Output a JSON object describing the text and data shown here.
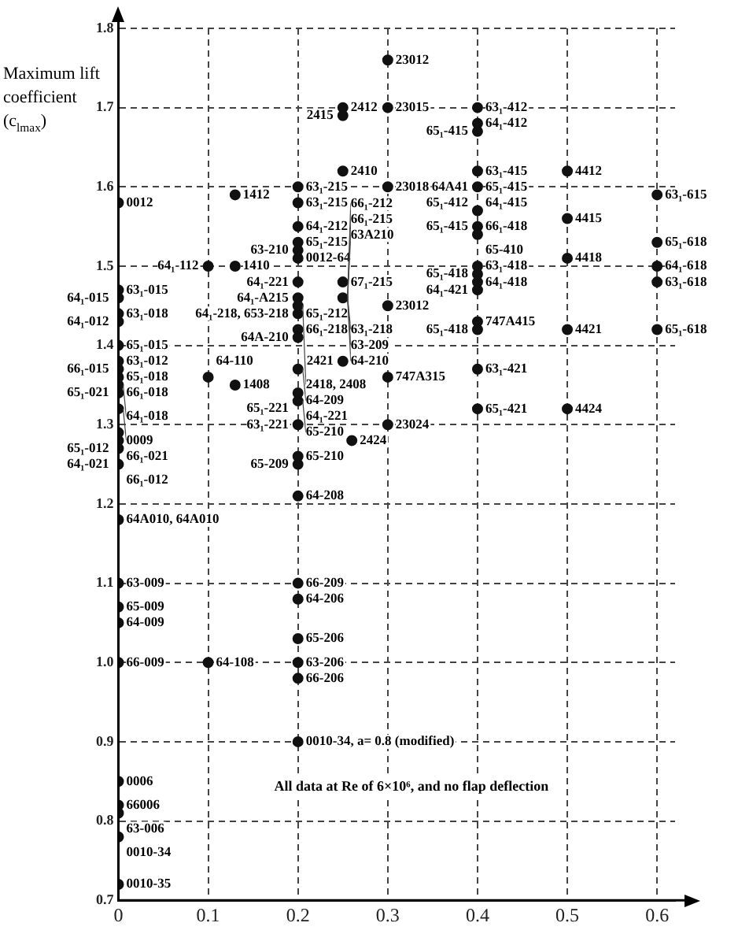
{
  "chart_data": {
    "type": "scatter",
    "ylabel": "Maximum lift coefficient (c$_{lmax}$)",
    "color": "#111111",
    "marker": "circle",
    "grid": true,
    "xlim": [
      0,
      0.62
    ],
    "ylim": [
      0.7,
      1.8
    ],
    "xticks": [
      0,
      0.1,
      0.2,
      0.3,
      0.4,
      0.5,
      0.6
    ],
    "yticks": [
      0.7,
      0.8,
      0.9,
      {
        "value": 1,
        "label": "1.0"
      },
      1.1,
      1.2,
      1.3,
      1.4,
      1.5,
      1.6,
      1.7,
      1.8
    ],
    "x": [
      0,
      0,
      0,
      0,
      0,
      0,
      0,
      0,
      0,
      0,
      0,
      0,
      0,
      0,
      0,
      0,
      0,
      0,
      0,
      0,
      0,
      0,
      0,
      0,
      0,
      0,
      0.13,
      0.13,
      0.1,
      0.1,
      0.13,
      0.1,
      0.2,
      0.2,
      0.2,
      0.2,
      0.2,
      0.2,
      0.2,
      0.2,
      0.2,
      0.2,
      0.2,
      0.2,
      0.2,
      0.2,
      0.2,
      0.2,
      0.2,
      0.2,
      0.2,
      0.2,
      0.2,
      0.2,
      0.2,
      0.2,
      0.2,
      0.25,
      0.25,
      0.25,
      0.25,
      0.25,
      0.25,
      0.26,
      0.3,
      0.3,
      0.3,
      0.3,
      0.3,
      0.3,
      0.4,
      0.4,
      0.4,
      0.4,
      0.4,
      0.4,
      0.4,
      0.4,
      0.4,
      0.4,
      0.4,
      0.4,
      0.4,
      0.4,
      0.4,
      0.4,
      0.5,
      0.5,
      0.5,
      0.5,
      0.5,
      0.6,
      0.6,
      0.6,
      0.6,
      0.6
    ],
    "values": [
      1.58,
      1.47,
      1.46,
      1.44,
      1.43,
      1.4,
      1.38,
      1.37,
      1.36,
      1.35,
      1.32,
      1.29,
      1.28,
      1.27,
      1.25,
      1.18,
      1.1,
      1.07,
      1.05,
      1.0,
      0.85,
      0.82,
      0.81,
      0.78,
      0.72,
      1.34,
      1.59,
      1.5,
      1.5,
      1.36,
      1.35,
      1.0,
      1.6,
      1.58,
      1.55,
      1.53,
      1.52,
      1.51,
      1.48,
      1.46,
      1.44,
      1.42,
      1.37,
      1.34,
      1.33,
      1.3,
      1.26,
      1.25,
      1.21,
      1.1,
      1.08,
      1.03,
      1.0,
      0.98,
      0.9,
      1.45,
      1.41,
      1.7,
      1.69,
      1.62,
      1.48,
      1.46,
      1.38,
      1.28,
      1.76,
      1.7,
      1.6,
      1.45,
      1.36,
      1.3,
      1.7,
      1.68,
      1.67,
      1.62,
      1.6,
      1.57,
      1.55,
      1.54,
      1.5,
      1.49,
      1.48,
      1.47,
      1.43,
      1.42,
      1.37,
      1.32,
      1.62,
      1.56,
      1.51,
      1.42,
      1.32,
      1.59,
      1.53,
      1.5,
      1.48,
      1.42
    ],
    "annotations": [
      {
        "text": "0012",
        "x": 0,
        "y": 1.58
      },
      {
        "text": "63₁-015",
        "x": 0,
        "y": 1.47
      },
      {
        "text": "64₁-015",
        "x": 0,
        "y": 1.46
      },
      {
        "text": "63₁-018",
        "x": 0,
        "y": 1.44
      },
      {
        "text": "64₁-012",
        "x": 0,
        "y": 1.43
      },
      {
        "text": "65₁-015",
        "x": 0,
        "y": 1.4
      },
      {
        "text": "63₁-012",
        "x": 0,
        "y": 1.38
      },
      {
        "text": "66₁-015",
        "x": 0,
        "y": 1.37
      },
      {
        "text": "65₁-018",
        "x": 0,
        "y": 1.36
      },
      {
        "text": "66₁-018",
        "x": 0,
        "y": 1.36
      },
      {
        "text": "65₁-021",
        "x": 0,
        "y": 1.36
      },
      {
        "text": "64₁-018",
        "x": 0,
        "y": 1.35
      },
      {
        "text": "0009",
        "x": 0,
        "y": 1.32
      },
      {
        "text": "65₁-012",
        "x": 0,
        "y": 1.29
      },
      {
        "text": "66₁-021",
        "x": 0,
        "y": 1.28
      },
      {
        "text": "64₁-021",
        "x": 0,
        "y": 1.27
      },
      {
        "text": "66₁-012",
        "x": 0,
        "y": 1.25
      },
      {
        "text": "64A010, 64A010",
        "x": 0,
        "y": 1.18
      },
      {
        "text": "63-009",
        "x": 0,
        "y": 1.1
      },
      {
        "text": "65-009",
        "x": 0,
        "y": 1.07
      },
      {
        "text": "64-009",
        "x": 0,
        "y": 1.05
      },
      {
        "text": "66-009",
        "x": 0,
        "y": 1.0
      },
      {
        "text": "0006",
        "x": 0,
        "y": 0.85
      },
      {
        "text": "66006",
        "x": 0,
        "y": 0.82
      },
      {
        "text": "63-006",
        "x": 0,
        "y": 0.81
      },
      {
        "text": "0010-34",
        "x": 0,
        "y": 0.78
      },
      {
        "text": "0010-35",
        "x": 0,
        "y": 0.72
      },
      {
        "text": "1412",
        "x": 0.13,
        "y": 1.59
      },
      {
        "text": "1410",
        "x": 0.13,
        "y": 1.5
      },
      {
        "text": "64₁-112",
        "x": 0.1,
        "y": 1.5
      },
      {
        "text": "64-110",
        "x": 0.1,
        "y": 1.36
      },
      {
        "text": "1408",
        "x": 0.13,
        "y": 1.35
      },
      {
        "text": "64-108",
        "x": 0.1,
        "y": 1.0
      },
      {
        "text": "63₁-215",
        "x": 0.2,
        "y": 1.6
      },
      {
        "text": "63₁-215",
        "x": 0.2,
        "y": 1.58
      },
      {
        "text": "64₁-212",
        "x": 0.2,
        "y": 1.55
      },
      {
        "text": "65₁-215",
        "x": 0.2,
        "y": 1.53
      },
      {
        "text": "63-210",
        "x": 0.2,
        "y": 1.52
      },
      {
        "text": "0012-64",
        "x": 0.2,
        "y": 1.51
      },
      {
        "text": "64₁-221",
        "x": 0.2,
        "y": 1.48
      },
      {
        "text": "64₁-A215",
        "x": 0.2,
        "y": 1.48
      },
      {
        "text": "64₁-218, 653-218",
        "x": 0.2,
        "y": 1.46
      },
      {
        "text": "65₁-212",
        "x": 0.2,
        "y": 1.44
      },
      {
        "text": "66₁-218",
        "x": 0.2,
        "y": 1.42
      },
      {
        "text": "64A-210",
        "x": 0.2,
        "y": 1.41
      },
      {
        "text": "2418, 2408",
        "x": 0.2,
        "y": 1.45
      },
      {
        "text": "64-209",
        "x": 0.2,
        "y": 1.37
      },
      {
        "text": "65₁-221",
        "x": 0.2,
        "y": 1.34
      },
      {
        "text": "64₁-221",
        "x": 0.2,
        "y": 1.33
      },
      {
        "text": "65-210",
        "x": 0.2,
        "y": 1.33
      },
      {
        "text": "63₁-221",
        "x": 0.2,
        "y": 1.3
      },
      {
        "text": "65-210",
        "x": 0.2,
        "y": 1.26
      },
      {
        "text": "65-209",
        "x": 0.2,
        "y": 1.25
      },
      {
        "text": "64-208",
        "x": 0.2,
        "y": 1.21
      },
      {
        "text": "66-209",
        "x": 0.2,
        "y": 1.1
      },
      {
        "text": "64-206",
        "x": 0.2,
        "y": 1.08
      },
      {
        "text": "65-206",
        "x": 0.2,
        "y": 1.03
      },
      {
        "text": "63-206",
        "x": 0.2,
        "y": 1.0
      },
      {
        "text": "66-206",
        "x": 0.2,
        "y": 0.98
      },
      {
        "text": "0010-34, a= 0.8 (modified)",
        "x": 0.2,
        "y": 0.9
      },
      {
        "text": "2412",
        "x": 0.25,
        "y": 1.7
      },
      {
        "text": "2415",
        "x": 0.25,
        "y": 1.69
      },
      {
        "text": "2410",
        "x": 0.25,
        "y": 1.62
      },
      {
        "text": "67₁-215",
        "x": 0.25,
        "y": 1.48
      },
      {
        "text": "63₁-218",
        "x": 0.25,
        "y": 1.46
      },
      {
        "text": "63-209",
        "x": 0.25,
        "y": 1.46
      },
      {
        "text": "64-210",
        "x": 0.25,
        "y": 1.46
      },
      {
        "text": "63A210",
        "x": 0.25,
        "y": 1.46
      },
      {
        "text": "66₁-215",
        "x": 0.25,
        "y": 1.46
      },
      {
        "text": "66₁-212",
        "x": 0.25,
        "y": 1.46
      },
      {
        "text": "2421",
        "x": 0.25,
        "y": 1.38
      },
      {
        "text": "2424",
        "x": 0.26,
        "y": 1.28
      },
      {
        "text": "23012",
        "x": 0.3,
        "y": 1.76
      },
      {
        "text": "23015",
        "x": 0.3,
        "y": 1.7
      },
      {
        "text": "23018",
        "x": 0.3,
        "y": 1.6
      },
      {
        "text": "23012",
        "x": 0.3,
        "y": 1.45
      },
      {
        "text": "747A315",
        "x": 0.3,
        "y": 1.36
      },
      {
        "text": "23024",
        "x": 0.3,
        "y": 1.3
      },
      {
        "text": "63₁-412",
        "x": 0.4,
        "y": 1.7
      },
      {
        "text": "64₁-412",
        "x": 0.4,
        "y": 1.68
      },
      {
        "text": "65₁-415",
        "x": 0.4,
        "y": 1.67
      },
      {
        "text": "63₁-415",
        "x": 0.4,
        "y": 1.62
      },
      {
        "text": "65₁-415",
        "x": 0.4,
        "y": 1.6
      },
      {
        "text": "64₁-415",
        "x": 0.4,
        "y": 1.6
      },
      {
        "text": "65₁-412",
        "x": 0.4,
        "y": 1.6
      },
      {
        "text": "64A41",
        "x": 0.4,
        "y": 1.6
      },
      {
        "text": "66₁-418",
        "x": 0.4,
        "y": 1.57
      },
      {
        "text": "65₁-415",
        "x": 0.4,
        "y": 1.55
      },
      {
        "text": "65-410",
        "x": 0.4,
        "y": 1.54
      },
      {
        "text": "63₁-418",
        "x": 0.4,
        "y": 1.5
      },
      {
        "text": "65₁-418",
        "x": 0.4,
        "y": 1.49
      },
      {
        "text": "64₁-418",
        "x": 0.4,
        "y": 1.48
      },
      {
        "text": "64₁-421",
        "x": 0.4,
        "y": 1.47
      },
      {
        "text": "747A415",
        "x": 0.4,
        "y": 1.43
      },
      {
        "text": "65₁-418",
        "x": 0.4,
        "y": 1.42
      },
      {
        "text": "63₁-421",
        "x": 0.4,
        "y": 1.37
      },
      {
        "text": "65₁-421",
        "x": 0.4,
        "y": 1.32
      },
      {
        "text": "4412",
        "x": 0.5,
        "y": 1.62
      },
      {
        "text": "4415",
        "x": 0.5,
        "y": 1.56
      },
      {
        "text": "4418",
        "x": 0.5,
        "y": 1.51
      },
      {
        "text": "4421",
        "x": 0.5,
        "y": 1.42
      },
      {
        "text": "4424",
        "x": 0.5,
        "y": 1.32
      },
      {
        "text": "63₁-615",
        "x": 0.6,
        "y": 1.59
      },
      {
        "text": "65₁-618",
        "x": 0.6,
        "y": 1.53
      },
      {
        "text": "64₁-618",
        "x": 0.6,
        "y": 1.5
      },
      {
        "text": "63₁-618",
        "x": 0.6,
        "y": 1.48
      },
      {
        "text": "65₁-618",
        "x": 0.6,
        "y": 1.42
      },
      "All data at Re of 6×10⁶, and no flap deflection"
    ]
  }
}
